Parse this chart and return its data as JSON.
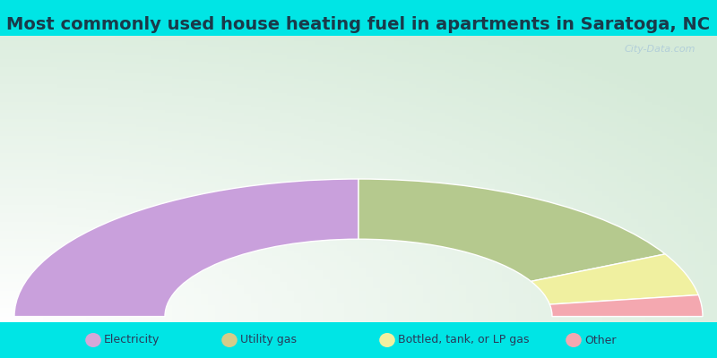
{
  "title": "Most commonly used house heating fuel in apartments in Saratoga, NC",
  "categories": [
    "Electricity",
    "Utility gas",
    "Bottled, tank, or LP gas",
    "Other"
  ],
  "values": [
    50,
    35,
    10,
    5
  ],
  "colors": [
    "#c9a0dc",
    "#b5c98e",
    "#f0f0a0",
    "#f4a8b0"
  ],
  "legend_colors": [
    "#d4a8d8",
    "#d4cc8a",
    "#f0f0a0",
    "#f4a8b0"
  ],
  "bg_cyan": "#00e5e5",
  "bg_grad_top": "#d5ead8",
  "bg_grad_bottom": "#e8f5e0",
  "title_color": "#1a3a4a",
  "legend_text_color": "#2a3a5a",
  "title_fontsize": 14,
  "watermark_color": "#aac8d8"
}
